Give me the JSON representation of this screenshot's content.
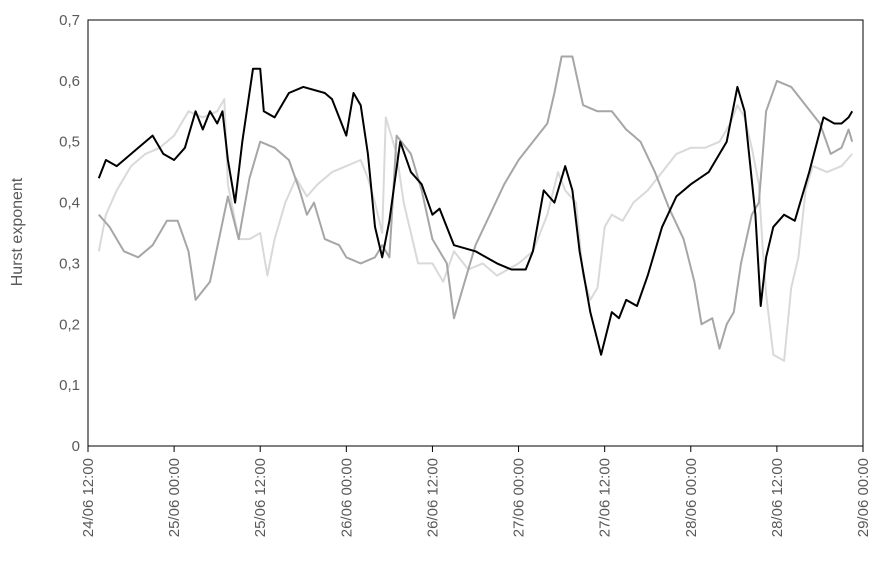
{
  "chart_data": {
    "type": "line",
    "title": "",
    "xlabel": "",
    "ylabel": "Hurst exponent",
    "ylim": [
      0,
      0.7
    ],
    "yticks": [
      "0",
      "0,1",
      "0,2",
      "0,3",
      "0,4",
      "0,5",
      "0,6",
      "0,7"
    ],
    "xlim": [
      "24/06 12:00",
      "29/06 00:00"
    ],
    "xticks": [
      "24/06 12:00",
      "25/06 00:00",
      "25/06 12:00",
      "26/06 00:00",
      "26/06 12:00",
      "27/06 00:00",
      "27/06 12:00",
      "28/06 00:00",
      "28/06 12:00",
      "29/06 00:00"
    ],
    "grid": false,
    "series": [
      {
        "color": "#000000",
        "points": [
          [
            "24/06 13:30",
            0.44
          ],
          [
            "24/06 14:30",
            0.47
          ],
          [
            "24/06 16:00",
            0.46
          ],
          [
            "24/06 18:00",
            0.48
          ],
          [
            "24/06 21:00",
            0.51
          ],
          [
            "24/06 22:30",
            0.48
          ],
          [
            "25/06 00:00",
            0.47
          ],
          [
            "25/06 01:30",
            0.49
          ],
          [
            "25/06 03:00",
            0.55
          ],
          [
            "25/06 04:00",
            0.52
          ],
          [
            "25/06 05:00",
            0.55
          ],
          [
            "25/06 06:00",
            0.53
          ],
          [
            "25/06 06:45",
            0.55
          ],
          [
            "25/06 07:30",
            0.47
          ],
          [
            "25/06 08:30",
            0.4
          ],
          [
            "25/06 09:30",
            0.5
          ],
          [
            "25/06 11:00",
            0.62
          ],
          [
            "25/06 12:00",
            0.62
          ],
          [
            "25/06 12:30",
            0.55
          ],
          [
            "25/06 14:00",
            0.54
          ],
          [
            "25/06 16:00",
            0.58
          ],
          [
            "25/06 18:00",
            0.59
          ],
          [
            "25/06 21:00",
            0.58
          ],
          [
            "25/06 22:00",
            0.57
          ],
          [
            "26/06 00:00",
            0.51
          ],
          [
            "26/06 01:00",
            0.58
          ],
          [
            "26/06 02:00",
            0.56
          ],
          [
            "26/06 03:00",
            0.48
          ],
          [
            "26/06 04:00",
            0.36
          ],
          [
            "26/06 05:00",
            0.31
          ],
          [
            "26/06 06:00",
            0.37
          ],
          [
            "26/06 07:30",
            0.5
          ],
          [
            "26/06 09:00",
            0.45
          ],
          [
            "26/06 10:30",
            0.43
          ],
          [
            "26/06 12:00",
            0.38
          ],
          [
            "26/06 13:00",
            0.39
          ],
          [
            "26/06 15:00",
            0.33
          ],
          [
            "26/06 18:00",
            0.32
          ],
          [
            "26/06 21:00",
            0.3
          ],
          [
            "26/06 23:00",
            0.29
          ],
          [
            "27/06 01:00",
            0.29
          ],
          [
            "27/06 02:00",
            0.32
          ],
          [
            "27/06 03:30",
            0.42
          ],
          [
            "27/06 05:00",
            0.4
          ],
          [
            "27/06 06:30",
            0.46
          ],
          [
            "27/06 07:30",
            0.42
          ],
          [
            "27/06 08:30",
            0.32
          ],
          [
            "27/06 10:00",
            0.22
          ],
          [
            "27/06 11:30",
            0.15
          ],
          [
            "27/06 13:00",
            0.22
          ],
          [
            "27/06 14:00",
            0.21
          ],
          [
            "27/06 15:00",
            0.24
          ],
          [
            "27/06 16:30",
            0.23
          ],
          [
            "27/06 18:00",
            0.28
          ],
          [
            "27/06 20:00",
            0.36
          ],
          [
            "27/06 22:00",
            0.41
          ],
          [
            "28/06 00:00",
            0.43
          ],
          [
            "28/06 02:30",
            0.45
          ],
          [
            "28/06 04:00",
            0.48
          ],
          [
            "28/06 05:00",
            0.5
          ],
          [
            "28/06 06:30",
            0.59
          ],
          [
            "28/06 07:30",
            0.55
          ],
          [
            "28/06 09:00",
            0.38
          ],
          [
            "28/06 09:45",
            0.23
          ],
          [
            "28/06 10:30",
            0.31
          ],
          [
            "28/06 11:30",
            0.36
          ],
          [
            "28/06 13:00",
            0.38
          ],
          [
            "28/06 14:30",
            0.37
          ],
          [
            "28/06 16:30",
            0.45
          ],
          [
            "28/06 18:30",
            0.54
          ],
          [
            "28/06 20:00",
            0.53
          ],
          [
            "28/06 21:00",
            0.53
          ],
          [
            "28/06 22:00",
            0.54
          ],
          [
            "28/06 22:30",
            0.55
          ]
        ]
      },
      {
        "color": "#a6a6a6",
        "points": [
          [
            "24/06 13:30",
            0.38
          ],
          [
            "24/06 15:00",
            0.36
          ],
          [
            "24/06 17:00",
            0.32
          ],
          [
            "24/06 19:00",
            0.31
          ],
          [
            "24/06 21:00",
            0.33
          ],
          [
            "24/06 23:00",
            0.37
          ],
          [
            "25/06 00:30",
            0.37
          ],
          [
            "25/06 02:00",
            0.32
          ],
          [
            "25/06 03:00",
            0.24
          ],
          [
            "25/06 05:00",
            0.27
          ],
          [
            "25/06 07:30",
            0.41
          ],
          [
            "25/06 09:00",
            0.34
          ],
          [
            "25/06 10:30",
            0.44
          ],
          [
            "25/06 12:00",
            0.5
          ],
          [
            "25/06 14:00",
            0.49
          ],
          [
            "25/06 16:00",
            0.47
          ],
          [
            "25/06 17:30",
            0.42
          ],
          [
            "25/06 18:30",
            0.38
          ],
          [
            "25/06 19:30",
            0.4
          ],
          [
            "25/06 21:00",
            0.34
          ],
          [
            "25/06 23:00",
            0.33
          ],
          [
            "26/06 00:00",
            0.31
          ],
          [
            "26/06 02:00",
            0.3
          ],
          [
            "26/06 04:00",
            0.31
          ],
          [
            "26/06 05:00",
            0.33
          ],
          [
            "26/06 06:00",
            0.31
          ],
          [
            "26/06 07:00",
            0.51
          ],
          [
            "26/06 09:00",
            0.48
          ],
          [
            "26/06 10:30",
            0.42
          ],
          [
            "26/06 12:00",
            0.34
          ],
          [
            "26/06 14:00",
            0.3
          ],
          [
            "26/06 15:00",
            0.21
          ],
          [
            "26/06 16:30",
            0.27
          ],
          [
            "26/06 18:00",
            0.33
          ],
          [
            "26/06 20:00",
            0.38
          ],
          [
            "26/06 22:00",
            0.43
          ],
          [
            "27/06 00:00",
            0.47
          ],
          [
            "27/06 02:00",
            0.5
          ],
          [
            "27/06 04:00",
            0.53
          ],
          [
            "27/06 05:00",
            0.58
          ],
          [
            "27/06 06:00",
            0.64
          ],
          [
            "27/06 07:30",
            0.64
          ],
          [
            "27/06 09:00",
            0.56
          ],
          [
            "27/06 11:00",
            0.55
          ],
          [
            "27/06 13:00",
            0.55
          ],
          [
            "27/06 15:00",
            0.52
          ],
          [
            "27/06 17:00",
            0.5
          ],
          [
            "27/06 19:00",
            0.45
          ],
          [
            "27/06 21:00",
            0.39
          ],
          [
            "27/06 23:00",
            0.34
          ],
          [
            "28/06 00:30",
            0.27
          ],
          [
            "28/06 01:30",
            0.2
          ],
          [
            "28/06 03:00",
            0.21
          ],
          [
            "28/06 04:00",
            0.16
          ],
          [
            "28/06 05:00",
            0.2
          ],
          [
            "28/06 06:00",
            0.22
          ],
          [
            "28/06 07:00",
            0.3
          ],
          [
            "28/06 08:30",
            0.38
          ],
          [
            "28/06 09:30",
            0.4
          ],
          [
            "28/06 10:30",
            0.55
          ],
          [
            "28/06 12:00",
            0.6
          ],
          [
            "28/06 14:00",
            0.59
          ],
          [
            "28/06 16:00",
            0.56
          ],
          [
            "28/06 18:00",
            0.53
          ],
          [
            "28/06 19:30",
            0.48
          ],
          [
            "28/06 21:00",
            0.49
          ],
          [
            "28/06 22:00",
            0.52
          ],
          [
            "28/06 22:30",
            0.5
          ]
        ]
      },
      {
        "color": "#d9d9d9",
        "points": [
          [
            "24/06 13:30",
            0.32
          ],
          [
            "24/06 14:30",
            0.38
          ],
          [
            "24/06 16:00",
            0.42
          ],
          [
            "24/06 18:00",
            0.46
          ],
          [
            "24/06 20:00",
            0.48
          ],
          [
            "24/06 22:00",
            0.49
          ],
          [
            "25/06 00:00",
            0.51
          ],
          [
            "25/06 02:00",
            0.55
          ],
          [
            "25/06 04:00",
            0.54
          ],
          [
            "25/06 06:00",
            0.55
          ],
          [
            "25/06 07:00",
            0.57
          ],
          [
            "25/06 07:30",
            0.43
          ],
          [
            "25/06 09:00",
            0.34
          ],
          [
            "25/06 10:30",
            0.34
          ],
          [
            "25/06 12:00",
            0.35
          ],
          [
            "25/06 13:00",
            0.28
          ],
          [
            "25/06 14:00",
            0.34
          ],
          [
            "25/06 15:30",
            0.4
          ],
          [
            "25/06 17:00",
            0.44
          ],
          [
            "25/06 18:30",
            0.41
          ],
          [
            "25/06 20:00",
            0.43
          ],
          [
            "25/06 22:00",
            0.45
          ],
          [
            "26/06 00:00",
            0.46
          ],
          [
            "26/06 02:00",
            0.47
          ],
          [
            "26/06 03:00",
            0.44
          ],
          [
            "26/06 04:00",
            0.4
          ],
          [
            "26/06 05:00",
            0.35
          ],
          [
            "26/06 05:30",
            0.54
          ],
          [
            "26/06 07:00",
            0.48
          ],
          [
            "26/06 08:00",
            0.4
          ],
          [
            "26/06 10:00",
            0.3
          ],
          [
            "26/06 12:00",
            0.3
          ],
          [
            "26/06 13:30",
            0.27
          ],
          [
            "26/06 15:00",
            0.32
          ],
          [
            "26/06 17:00",
            0.29
          ],
          [
            "26/06 19:00",
            0.3
          ],
          [
            "26/06 21:00",
            0.28
          ],
          [
            "27/06 00:00",
            0.3
          ],
          [
            "27/06 02:00",
            0.32
          ],
          [
            "27/06 04:00",
            0.38
          ],
          [
            "27/06 05:30",
            0.45
          ],
          [
            "27/06 06:30",
            0.42
          ],
          [
            "27/06 08:00",
            0.4
          ],
          [
            "27/06 09:00",
            0.28
          ],
          [
            "27/06 10:00",
            0.24
          ],
          [
            "27/06 11:00",
            0.26
          ],
          [
            "27/06 12:00",
            0.36
          ],
          [
            "27/06 13:00",
            0.38
          ],
          [
            "27/06 14:30",
            0.37
          ],
          [
            "27/06 16:00",
            0.4
          ],
          [
            "27/06 18:00",
            0.42
          ],
          [
            "27/06 20:00",
            0.45
          ],
          [
            "27/06 22:00",
            0.48
          ],
          [
            "28/06 00:00",
            0.49
          ],
          [
            "28/06 02:00",
            0.49
          ],
          [
            "28/06 04:00",
            0.5
          ],
          [
            "28/06 05:30",
            0.53
          ],
          [
            "28/06 06:30",
            0.56
          ],
          [
            "28/06 07:30",
            0.54
          ],
          [
            "28/06 08:30",
            0.49
          ],
          [
            "28/06 09:30",
            0.43
          ],
          [
            "28/06 10:00",
            0.33
          ],
          [
            "28/06 10:30",
            0.25
          ],
          [
            "28/06 11:30",
            0.15
          ],
          [
            "28/06 13:00",
            0.14
          ],
          [
            "28/06 14:00",
            0.26
          ],
          [
            "28/06 15:00",
            0.31
          ],
          [
            "28/06 16:00",
            0.42
          ],
          [
            "28/06 17:00",
            0.46
          ],
          [
            "28/06 19:00",
            0.45
          ],
          [
            "28/06 21:00",
            0.46
          ],
          [
            "28/06 22:30",
            0.48
          ]
        ]
      }
    ]
  }
}
